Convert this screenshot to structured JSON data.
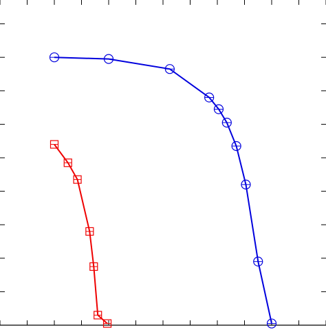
{
  "chart_data": {
    "type": "line",
    "title": "",
    "xlabel": "",
    "ylabel": "",
    "xlim": [
      0,
      12
    ],
    "ylim": [
      0,
      10
    ],
    "grid": false,
    "legend": "none",
    "series": [
      {
        "color": "#0000dd",
        "marker": "circle",
        "x": [
          2,
          4,
          6.25,
          7.7,
          8.05,
          8.35,
          8.7,
          9.05,
          9.5,
          10
        ],
        "y": [
          8,
          7.95,
          7.65,
          6.8,
          6.45,
          6.05,
          5.35,
          4.2,
          1.9,
          0.05
        ]
      },
      {
        "color": "#ee0000",
        "marker": "square",
        "x": [
          2,
          2.5,
          2.85,
          3.3,
          3.45,
          3.6,
          3.95
        ],
        "y": [
          5.4,
          4.85,
          4.35,
          2.8,
          1.75,
          0.3,
          0.05
        ]
      }
    ]
  }
}
